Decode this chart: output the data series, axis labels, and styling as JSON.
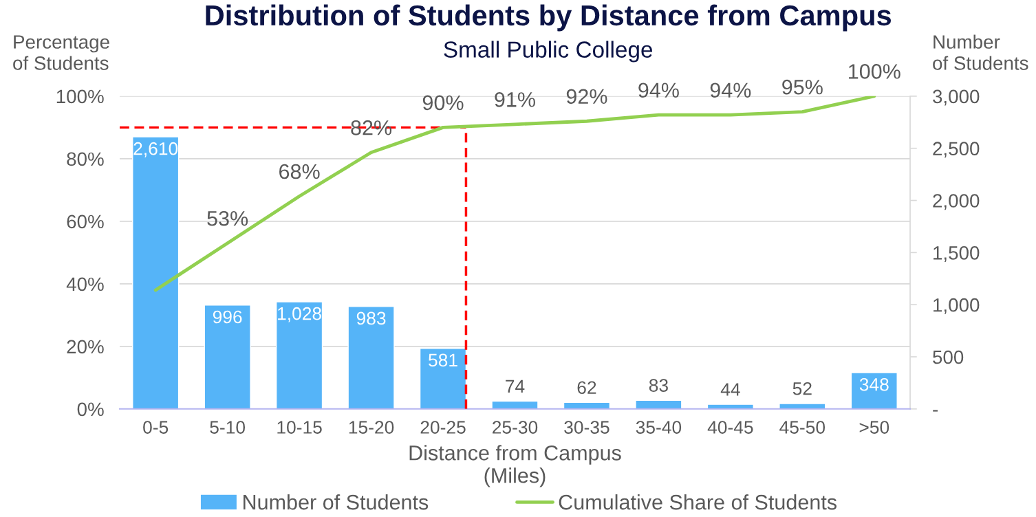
{
  "chart_data": {
    "type": "bar",
    "title": "Distribution of Students by Distance from Campus",
    "subtitle": "Small Public College",
    "xlabel": "Distance from Campus\n(Miles)",
    "ylabel": "Percentage\nof Students",
    "y2label": "Number\nof Students",
    "categories": [
      "0-5",
      "5-10",
      "10-15",
      "15-20",
      "20-25",
      "25-30",
      "30-35",
      "35-40",
      "40-45",
      "45-50",
      ">50"
    ],
    "series": [
      {
        "name": "Number of Students",
        "axis": "y2",
        "color": "#55b4f8",
        "values": [
          2610,
          996,
          1028,
          983,
          581,
          74,
          62,
          83,
          44,
          52,
          348
        ],
        "value_labels": [
          "2,610",
          "996",
          "1,028",
          "983",
          "581",
          "74",
          "62",
          "83",
          "44",
          "52",
          "348"
        ]
      },
      {
        "name": "Cumulative Share of Students",
        "type": "line",
        "axis": "y",
        "color": "#92d050",
        "values": [
          38,
          53,
          68,
          82,
          90,
          91,
          92,
          94,
          94,
          95,
          100
        ],
        "value_labels": [
          null,
          "53%",
          "68%",
          "82%",
          "90%",
          "91%",
          "92%",
          "94%",
          "94%",
          "95%",
          "100%"
        ]
      }
    ],
    "ylim": [
      0,
      100
    ],
    "yticks": [
      {
        "value": 0,
        "label": "0%"
      },
      {
        "value": 20,
        "label": "20%"
      },
      {
        "value": 40,
        "label": "40%"
      },
      {
        "value": 60,
        "label": "60%"
      },
      {
        "value": 80,
        "label": "80%"
      },
      {
        "value": 100,
        "label": "100%"
      }
    ],
    "y2lim": [
      0,
      3000
    ],
    "y2ticks": [
      {
        "value": 0,
        "label": "-"
      },
      500,
      {
        "value": 1000,
        "label": "1,000"
      },
      {
        "value": 1500,
        "label": "1,500"
      },
      {
        "value": 2000,
        "label": "2,000"
      },
      {
        "value": 2500,
        "label": "2,500"
      },
      {
        "value": 3000,
        "label": "3,000"
      }
    ],
    "ref_lines": [
      {
        "axis": "y",
        "value": 90,
        "color": "#ff0000",
        "line_style": "dashed"
      },
      {
        "axis": "x",
        "value": "20-25",
        "color": "#ff0000",
        "line_style": "dashed"
      }
    ],
    "grid": "y",
    "legend": "bottom"
  }
}
